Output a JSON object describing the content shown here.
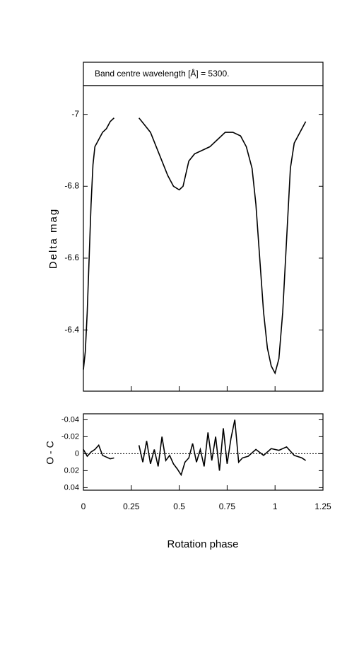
{
  "chart_data": [
    {
      "type": "line",
      "title": "Band centre wavelength [Å] = 5300.",
      "ylabel": "Delta mag",
      "color": "#000000",
      "y_inverted": true,
      "xlim": [
        0,
        1.25
      ],
      "xticks": [
        0,
        0.25,
        0.5,
        0.75,
        1,
        1.25
      ],
      "ylim": [
        -7.08,
        -6.23
      ],
      "yticks": [
        -7,
        -6.8,
        -6.6,
        -6.4
      ],
      "x": [
        0,
        0.01,
        0.02,
        0.03,
        0.04,
        0.05,
        0.06,
        0.07,
        0.08,
        0.1,
        0.12,
        0.14,
        0.16,
        0.2,
        0.29,
        0.32,
        0.35,
        0.38,
        0.41,
        0.44,
        0.47,
        0.5,
        0.52,
        0.55,
        0.58,
        0.62,
        0.66,
        0.7,
        0.74,
        0.78,
        0.82,
        0.85,
        0.88,
        0.9,
        0.92,
        0.94,
        0.96,
        0.98,
        1.0,
        1.02,
        1.04,
        1.06,
        1.08,
        1.1,
        1.12,
        1.14,
        1.16
      ],
      "values": [
        -6.29,
        -6.34,
        -6.45,
        -6.6,
        -6.75,
        -6.86,
        -6.91,
        -6.92,
        -6.93,
        -6.95,
        -6.96,
        -6.98,
        -6.99,
        null,
        -6.99,
        -6.97,
        -6.95,
        -6.91,
        -6.87,
        -6.83,
        -6.8,
        -6.79,
        -6.8,
        -6.87,
        -6.89,
        -6.9,
        -6.91,
        -6.93,
        -6.95,
        -6.95,
        -6.94,
        -6.91,
        -6.85,
        -6.75,
        -6.6,
        -6.45,
        -6.35,
        -6.3,
        -6.28,
        -6.32,
        -6.45,
        -6.65,
        -6.85,
        -6.92,
        -6.94,
        -6.96,
        -6.98
      ]
    },
    {
      "type": "line",
      "ylabel": "O - C",
      "xlabel": "Rotation phase",
      "color": "#000000",
      "y_inverted": true,
      "hline": 0,
      "xlim": [
        0,
        1.25
      ],
      "xticks": [
        0,
        0.25,
        0.5,
        0.75,
        1,
        1.25
      ],
      "ylim": [
        -0.047,
        0.043
      ],
      "yticks": [
        -0.04,
        -0.02,
        0,
        0.02,
        0.04
      ],
      "x": [
        0,
        0.02,
        0.04,
        0.06,
        0.08,
        0.1,
        0.12,
        0.14,
        0.16,
        0.2,
        0.29,
        0.31,
        0.33,
        0.35,
        0.37,
        0.39,
        0.41,
        0.43,
        0.45,
        0.47,
        0.49,
        0.51,
        0.53,
        0.55,
        0.57,
        0.59,
        0.61,
        0.63,
        0.65,
        0.67,
        0.69,
        0.71,
        0.73,
        0.75,
        0.77,
        0.79,
        0.81,
        0.83,
        0.86,
        0.9,
        0.94,
        0.98,
        1.02,
        1.06,
        1.1,
        1.14,
        1.16
      ],
      "values": [
        -0.005,
        0.003,
        -0.002,
        -0.005,
        -0.01,
        0.002,
        0.004,
        0.006,
        0.005,
        null,
        -0.01,
        0.01,
        -0.015,
        0.012,
        -0.005,
        0.015,
        -0.02,
        0.008,
        0.002,
        0.012,
        0.018,
        0.025,
        0.01,
        0.005,
        -0.012,
        0.01,
        -0.005,
        0.015,
        -0.025,
        0.008,
        -0.02,
        0.02,
        -0.03,
        0.012,
        -0.018,
        -0.04,
        0.01,
        0.005,
        0.003,
        -0.005,
        0.002,
        -0.006,
        -0.004,
        -0.008,
        0.002,
        0.005,
        0.008
      ]
    }
  ]
}
